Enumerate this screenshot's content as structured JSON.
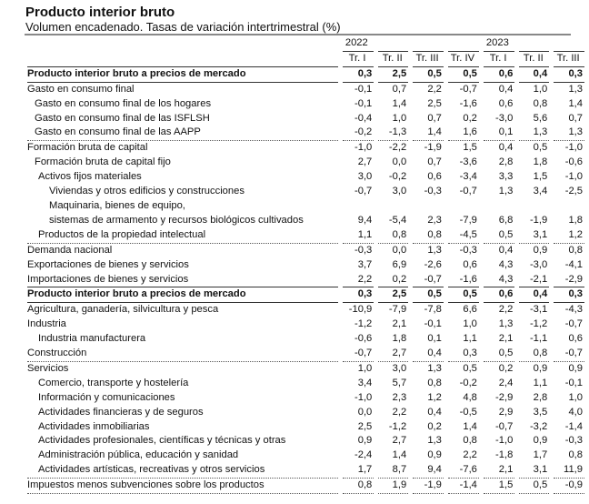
{
  "title": "Producto interior bruto",
  "subtitle": "Volumen encadenado. Tasas de variación intertrimestral (%)",
  "years": [
    "2022",
    "2023"
  ],
  "quarters": [
    "Tr. I",
    "Tr. II",
    "Tr. III",
    "Tr. IV",
    "Tr. I",
    "Tr. II",
    "Tr. III"
  ],
  "rows": [
    {
      "label": "Producto interior bruto a precios de mercado",
      "values": [
        "0,3",
        "2,5",
        "0,5",
        "0,5",
        "0,6",
        "0,4",
        "0,3"
      ]
    },
    {
      "label": "Gasto en consumo final",
      "values": [
        "-0,1",
        "0,7",
        "2,2",
        "-0,7",
        "0,4",
        "1,0",
        "1,3"
      ]
    },
    {
      "label": "Gasto en consumo final de los hogares",
      "values": [
        "-0,1",
        "1,4",
        "2,5",
        "-1,6",
        "0,6",
        "0,8",
        "1,4"
      ]
    },
    {
      "label": "Gasto en consumo final de las ISFLSH",
      "values": [
        "-0,4",
        "1,0",
        "0,7",
        "0,2",
        "-3,0",
        "5,6",
        "0,7"
      ]
    },
    {
      "label": "Gasto en consumo final de las AAPP",
      "values": [
        "-0,2",
        "-1,3",
        "1,4",
        "1,6",
        "0,1",
        "1,3",
        "1,3"
      ]
    },
    {
      "label": "Formación bruta de capital",
      "values": [
        "-1,0",
        "-2,2",
        "-1,9",
        "1,5",
        "0,4",
        "0,5",
        "-1,0"
      ]
    },
    {
      "label": "Formación bruta de capital fijo",
      "values": [
        "2,7",
        "0,0",
        "0,7",
        "-3,6",
        "2,8",
        "1,8",
        "-0,6"
      ]
    },
    {
      "label": "Activos fijos  materiales",
      "values": [
        "3,0",
        "-0,2",
        "0,6",
        "-3,4",
        "3,3",
        "1,5",
        "-1,0"
      ]
    },
    {
      "label": "Viviendas y otros edificios y construcciones",
      "values": [
        "-0,7",
        "3,0",
        "-0,3",
        "-0,7",
        "1,3",
        "3,4",
        "-2,5"
      ]
    },
    {
      "label": "Maquinaria, bienes de equipo,",
      "label2": "sistemas de armamento y recursos biológicos cultivados",
      "values": [
        "9,4",
        "-5,4",
        "2,3",
        "-7,9",
        "6,8",
        "-1,9",
        "1,8"
      ]
    },
    {
      "label": "Productos de la propiedad intelectual",
      "values": [
        "1,1",
        "0,8",
        "0,8",
        "-4,5",
        "0,5",
        "3,1",
        "1,2"
      ]
    },
    {
      "label": "Demanda nacional",
      "values": [
        "-0,3",
        "0,0",
        "1,3",
        "-0,3",
        "0,4",
        "0,9",
        "0,8"
      ]
    },
    {
      "label": "Exportaciones de bienes y servicios",
      "values": [
        "3,7",
        "6,9",
        "-2,6",
        "0,6",
        "4,3",
        "-3,0",
        "-4,1"
      ]
    },
    {
      "label": "Importaciones de bienes y servicios",
      "values": [
        "2,2",
        "0,2",
        "-0,7",
        "-1,6",
        "4,3",
        "-2,1",
        "-2,9"
      ]
    },
    {
      "label": "Producto interior bruto a precios de mercado",
      "values": [
        "0,3",
        "2,5",
        "0,5",
        "0,5",
        "0,6",
        "0,4",
        "0,3"
      ]
    },
    {
      "label": "Agricultura, ganadería, silvicultura y pesca",
      "values": [
        "-10,9",
        "-7,9",
        "-7,8",
        "6,6",
        "2,2",
        "-3,1",
        "-4,3"
      ]
    },
    {
      "label": "Industria",
      "values": [
        "-1,2",
        "2,1",
        "-0,1",
        "1,0",
        "1,3",
        "-1,2",
        "-0,7"
      ]
    },
    {
      "label": "Industria manufacturera",
      "values": [
        "-0,6",
        "1,8",
        "0,1",
        "1,1",
        "2,1",
        "-1,1",
        "0,6"
      ]
    },
    {
      "label": "Construcción",
      "values": [
        "-0,7",
        "2,7",
        "0,4",
        "0,3",
        "0,5",
        "0,8",
        "-0,7"
      ]
    },
    {
      "label": "Servicios",
      "values": [
        "1,0",
        "3,0",
        "1,3",
        "0,5",
        "0,2",
        "0,9",
        "0,9"
      ]
    },
    {
      "label": "Comercio, transporte y hostelería",
      "values": [
        "3,4",
        "5,7",
        "0,8",
        "-0,2",
        "2,4",
        "1,1",
        "-0,1"
      ]
    },
    {
      "label": "Información y comunicaciones",
      "values": [
        "-1,0",
        "2,3",
        "1,2",
        "4,8",
        "-2,9",
        "2,8",
        "1,0"
      ]
    },
    {
      "label": "Actividades financieras y de seguros",
      "values": [
        "0,0",
        "2,2",
        "0,4",
        "-0,5",
        "2,9",
        "3,5",
        "4,0"
      ]
    },
    {
      "label": "Actividades inmobiliarias",
      "values": [
        "2,5",
        "-1,2",
        "0,2",
        "1,4",
        "-0,7",
        "-3,2",
        "-1,4"
      ]
    },
    {
      "label": "Actividades profesionales, científicas y técnicas y otras",
      "values": [
        "0,9",
        "2,7",
        "1,3",
        "0,8",
        "-1,0",
        "0,9",
        "-0,3"
      ]
    },
    {
      "label": "Administración pública, educación y sanidad",
      "values": [
        "-2,4",
        "1,4",
        "0,9",
        "2,2",
        "-1,8",
        "1,7",
        "0,8"
      ]
    },
    {
      "label": "Actividades artísticas, recreativas y otros servicios",
      "values": [
        "1,7",
        "8,7",
        "9,4",
        "-7,6",
        "2,1",
        "3,1",
        "11,9"
      ]
    },
    {
      "label": "Impuestos menos subvenciones sobre los productos",
      "values": [
        "0,8",
        "1,9",
        "-1,9",
        "-1,4",
        "1,5",
        "0,5",
        "-0,9"
      ]
    }
  ]
}
